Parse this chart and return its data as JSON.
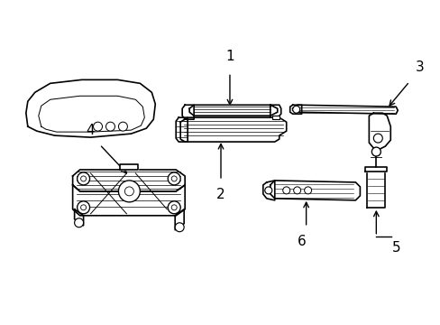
{
  "background_color": "#ffffff",
  "line_color": "#000000",
  "label_color": "#000000",
  "line_width": 1.2,
  "label_fontsize": 11,
  "figsize": [
    4.89,
    3.6
  ],
  "dpi": 100
}
